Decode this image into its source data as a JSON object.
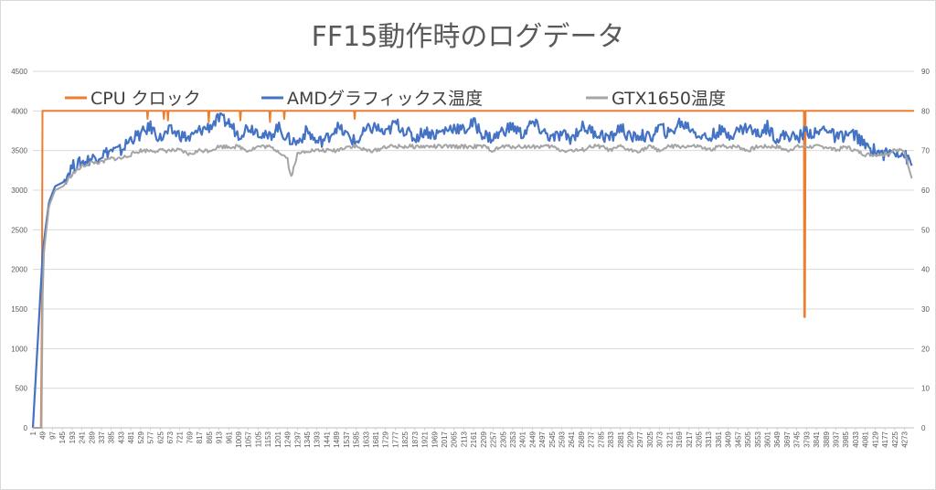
{
  "chart_data": {
    "type": "line",
    "title": "FF15動作時のログデータ",
    "legend_position": "top",
    "grid": true,
    "colors": {
      "cpu": "#ed7d31",
      "amd": "#4472c4",
      "gtx": "#a5a5a5",
      "grid": "#d9d9d9"
    },
    "ylim_left": [
      0,
      4500
    ],
    "ylim_right": [
      0,
      90
    ],
    "yticks_left": [
      "0",
      "500",
      "1000",
      "1500",
      "2000",
      "2500",
      "3000",
      "3500",
      "4000",
      "4500"
    ],
    "yticks_right": [
      "0",
      "10",
      "20",
      "30",
      "40",
      "50",
      "60",
      "70",
      "80",
      "90"
    ],
    "xlim": [
      1,
      4320
    ],
    "xticks": [
      "1",
      "49",
      "97",
      "145",
      "193",
      "241",
      "289",
      "337",
      "385",
      "433",
      "481",
      "529",
      "577",
      "625",
      "673",
      "721",
      "769",
      "817",
      "865",
      "913",
      "961",
      "1009",
      "1057",
      "1105",
      "1153",
      "1201",
      "1249",
      "1297",
      "1345",
      "1393",
      "1441",
      "1489",
      "1537",
      "1585",
      "1633",
      "1681",
      "1729",
      "1777",
      "1825",
      "1873",
      "1921",
      "1969",
      "2017",
      "2065",
      "2113",
      "2161",
      "2209",
      "2257",
      "2305",
      "2353",
      "2401",
      "2449",
      "2497",
      "2545",
      "2593",
      "2641",
      "2689",
      "2737",
      "2785",
      "2833",
      "2881",
      "2929",
      "2977",
      "3025",
      "3073",
      "3121",
      "3169",
      "3217",
      "3265",
      "3313",
      "3361",
      "3409",
      "3457",
      "3505",
      "3553",
      "3601",
      "3649",
      "3697",
      "3745",
      "3793",
      "3841",
      "3889",
      "3937",
      "3985",
      "4033",
      "4081",
      "4129",
      "4177",
      "4225",
      "4273"
    ],
    "series": [
      {
        "name": "CPU クロック",
        "axis": "left",
        "x": [
          1,
          40,
          45,
          48,
          52,
          560,
          563,
          566,
          640,
          643,
          646,
          660,
          663,
          666,
          860,
          863,
          866,
          1015,
          1018,
          1021,
          1160,
          1163,
          1166,
          1230,
          1233,
          1236,
          1575,
          1578,
          1581,
          3780,
          3782,
          3785,
          3788,
          4320
        ],
        "y": [
          0,
          0,
          1400,
          4000,
          4000,
          4000,
          3900,
          4000,
          4000,
          3900,
          4000,
          4000,
          3880,
          4000,
          4000,
          3860,
          4000,
          4000,
          3880,
          4000,
          4000,
          3860,
          4000,
          4000,
          3900,
          4000,
          4000,
          3900,
          4000,
          4000,
          1400,
          1400,
          4000,
          4000
        ]
      },
      {
        "name": "AMDグラフィックス温度",
        "axis": "right",
        "x": [
          1,
          50,
          80,
          110,
          150,
          193,
          241,
          289,
          337,
          385,
          433,
          481,
          529,
          577,
          625,
          673,
          721,
          769,
          817,
          865,
          913,
          961,
          1009,
          1057,
          1105,
          1153,
          1201,
          1249,
          1297,
          1345,
          1393,
          1441,
          1489,
          1537,
          1585,
          1633,
          1681,
          1729,
          1777,
          1825,
          1873,
          1921,
          1969,
          2017,
          2065,
          2113,
          2161,
          2209,
          2257,
          2305,
          2353,
          2401,
          2449,
          2497,
          2545,
          2593,
          2641,
          2689,
          2737,
          2785,
          2833,
          2881,
          2929,
          2977,
          3025,
          3073,
          3121,
          3169,
          3217,
          3265,
          3313,
          3361,
          3409,
          3457,
          3505,
          3553,
          3601,
          3649,
          3697,
          3745,
          3793,
          3841,
          3889,
          3937,
          3985,
          4033,
          4081,
          4129,
          4177,
          4225,
          4273,
          4310
        ],
        "y": [
          0,
          45,
          57,
          61,
          62,
          66,
          67,
          68,
          69,
          70,
          70,
          73,
          74,
          76,
          73,
          75,
          74,
          73,
          75,
          76,
          78,
          77,
          74,
          76,
          75,
          73,
          76,
          73,
          72,
          75,
          72,
          73,
          76,
          74,
          72,
          75,
          76,
          74,
          77,
          75,
          73,
          75,
          74,
          75,
          76,
          75,
          77,
          74,
          73,
          75,
          76,
          74,
          77,
          75,
          73,
          74,
          73,
          76,
          75,
          74,
          73,
          76,
          73,
          74,
          73,
          76,
          74,
          77,
          76,
          74,
          73,
          75,
          74,
          75,
          76,
          74,
          76,
          73,
          74,
          73,
          75,
          74,
          76,
          73,
          74,
          74,
          71,
          70,
          69,
          70,
          69,
          66
        ]
      },
      {
        "name": "GTX1650温度",
        "axis": "right",
        "x": [
          1,
          45,
          50,
          80,
          110,
          150,
          193,
          241,
          289,
          337,
          385,
          433,
          481,
          529,
          577,
          625,
          673,
          721,
          769,
          817,
          865,
          913,
          961,
          1009,
          1057,
          1105,
          1153,
          1201,
          1249,
          1265,
          1297,
          1345,
          1393,
          1441,
          1489,
          1537,
          1585,
          1633,
          1681,
          1729,
          1777,
          1825,
          1873,
          1921,
          1969,
          2017,
          2065,
          2113,
          2161,
          2209,
          2257,
          2305,
          2353,
          2401,
          2449,
          2497,
          2545,
          2593,
          2641,
          2689,
          2737,
          2785,
          2833,
          2881,
          2929,
          2977,
          3025,
          3073,
          3121,
          3169,
          3217,
          3265,
          3313,
          3361,
          3409,
          3457,
          3505,
          3553,
          3601,
          3649,
          3697,
          3745,
          3793,
          3841,
          3889,
          3937,
          3985,
          4033,
          4081,
          4129,
          4177,
          4225,
          4273,
          4310
        ],
        "y": [
          0,
          0,
          42,
          56,
          60,
          61,
          64,
          66,
          67,
          67,
          68,
          68,
          69,
          70,
          70,
          70,
          70,
          70,
          69,
          70,
          70,
          71,
          71,
          71,
          70,
          71,
          71,
          70,
          68,
          63,
          69,
          70,
          70,
          70,
          70,
          71,
          71,
          70,
          70,
          71,
          71,
          71,
          71,
          71,
          71,
          71,
          71,
          71,
          71,
          71,
          70,
          71,
          71,
          71,
          71,
          71,
          71,
          70,
          70,
          70,
          71,
          71,
          70,
          71,
          70,
          70,
          71,
          70,
          71,
          71,
          71,
          71,
          70,
          71,
          71,
          71,
          70,
          71,
          71,
          71,
          70,
          71,
          71,
          71,
          71,
          70,
          71,
          70,
          69,
          69,
          69,
          70,
          70,
          63
        ]
      }
    ]
  }
}
